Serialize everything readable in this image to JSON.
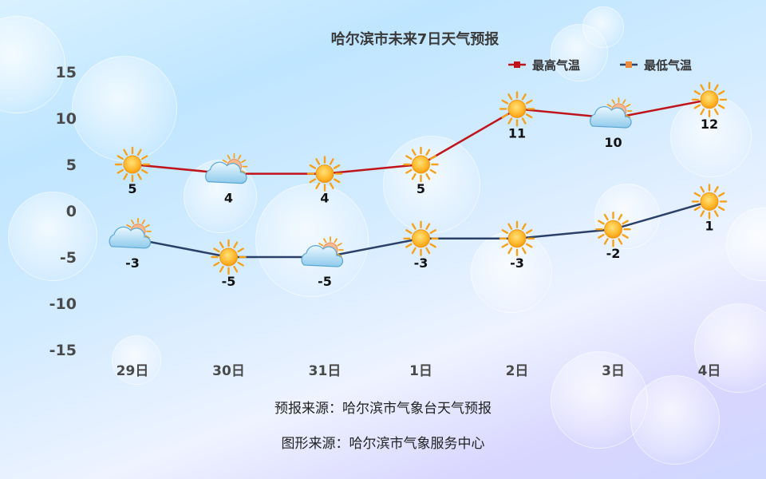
{
  "chart_data": {
    "type": "line",
    "title": "哈尔滨市未来7日天气预报",
    "categories": [
      "29日",
      "30日",
      "31日",
      "1日",
      "2日",
      "3日",
      "4日"
    ],
    "ylim": [
      -15,
      15
    ],
    "yticks": [
      15,
      10,
      5,
      0,
      -5,
      -10,
      -15
    ],
    "grid": false,
    "legend_position": "top-right",
    "series": [
      {
        "name": "最高气温",
        "color": "#c0141c",
        "values": [
          5,
          4,
          4,
          5,
          11,
          10,
          12
        ],
        "icons": [
          "sun-icon",
          "cloud-sun-icon",
          "sun-icon",
          "sun-icon",
          "sun-icon",
          "cloud-sun-icon",
          "sun-icon"
        ]
      },
      {
        "name": "最低气温",
        "color": "#2b4068",
        "values": [
          -3,
          -5,
          -5,
          -3,
          -3,
          -2,
          1
        ],
        "icons": [
          "cloud-sun-icon",
          "sun-icon",
          "cloud-sun-icon",
          "sun-icon",
          "sun-icon",
          "sun-icon",
          "sun-icon"
        ]
      }
    ]
  },
  "footer": {
    "source_forecast": "预报来源：哈尔滨市气象台天气预报",
    "source_graphic": "图形来源：哈尔滨市气象服务中心"
  }
}
